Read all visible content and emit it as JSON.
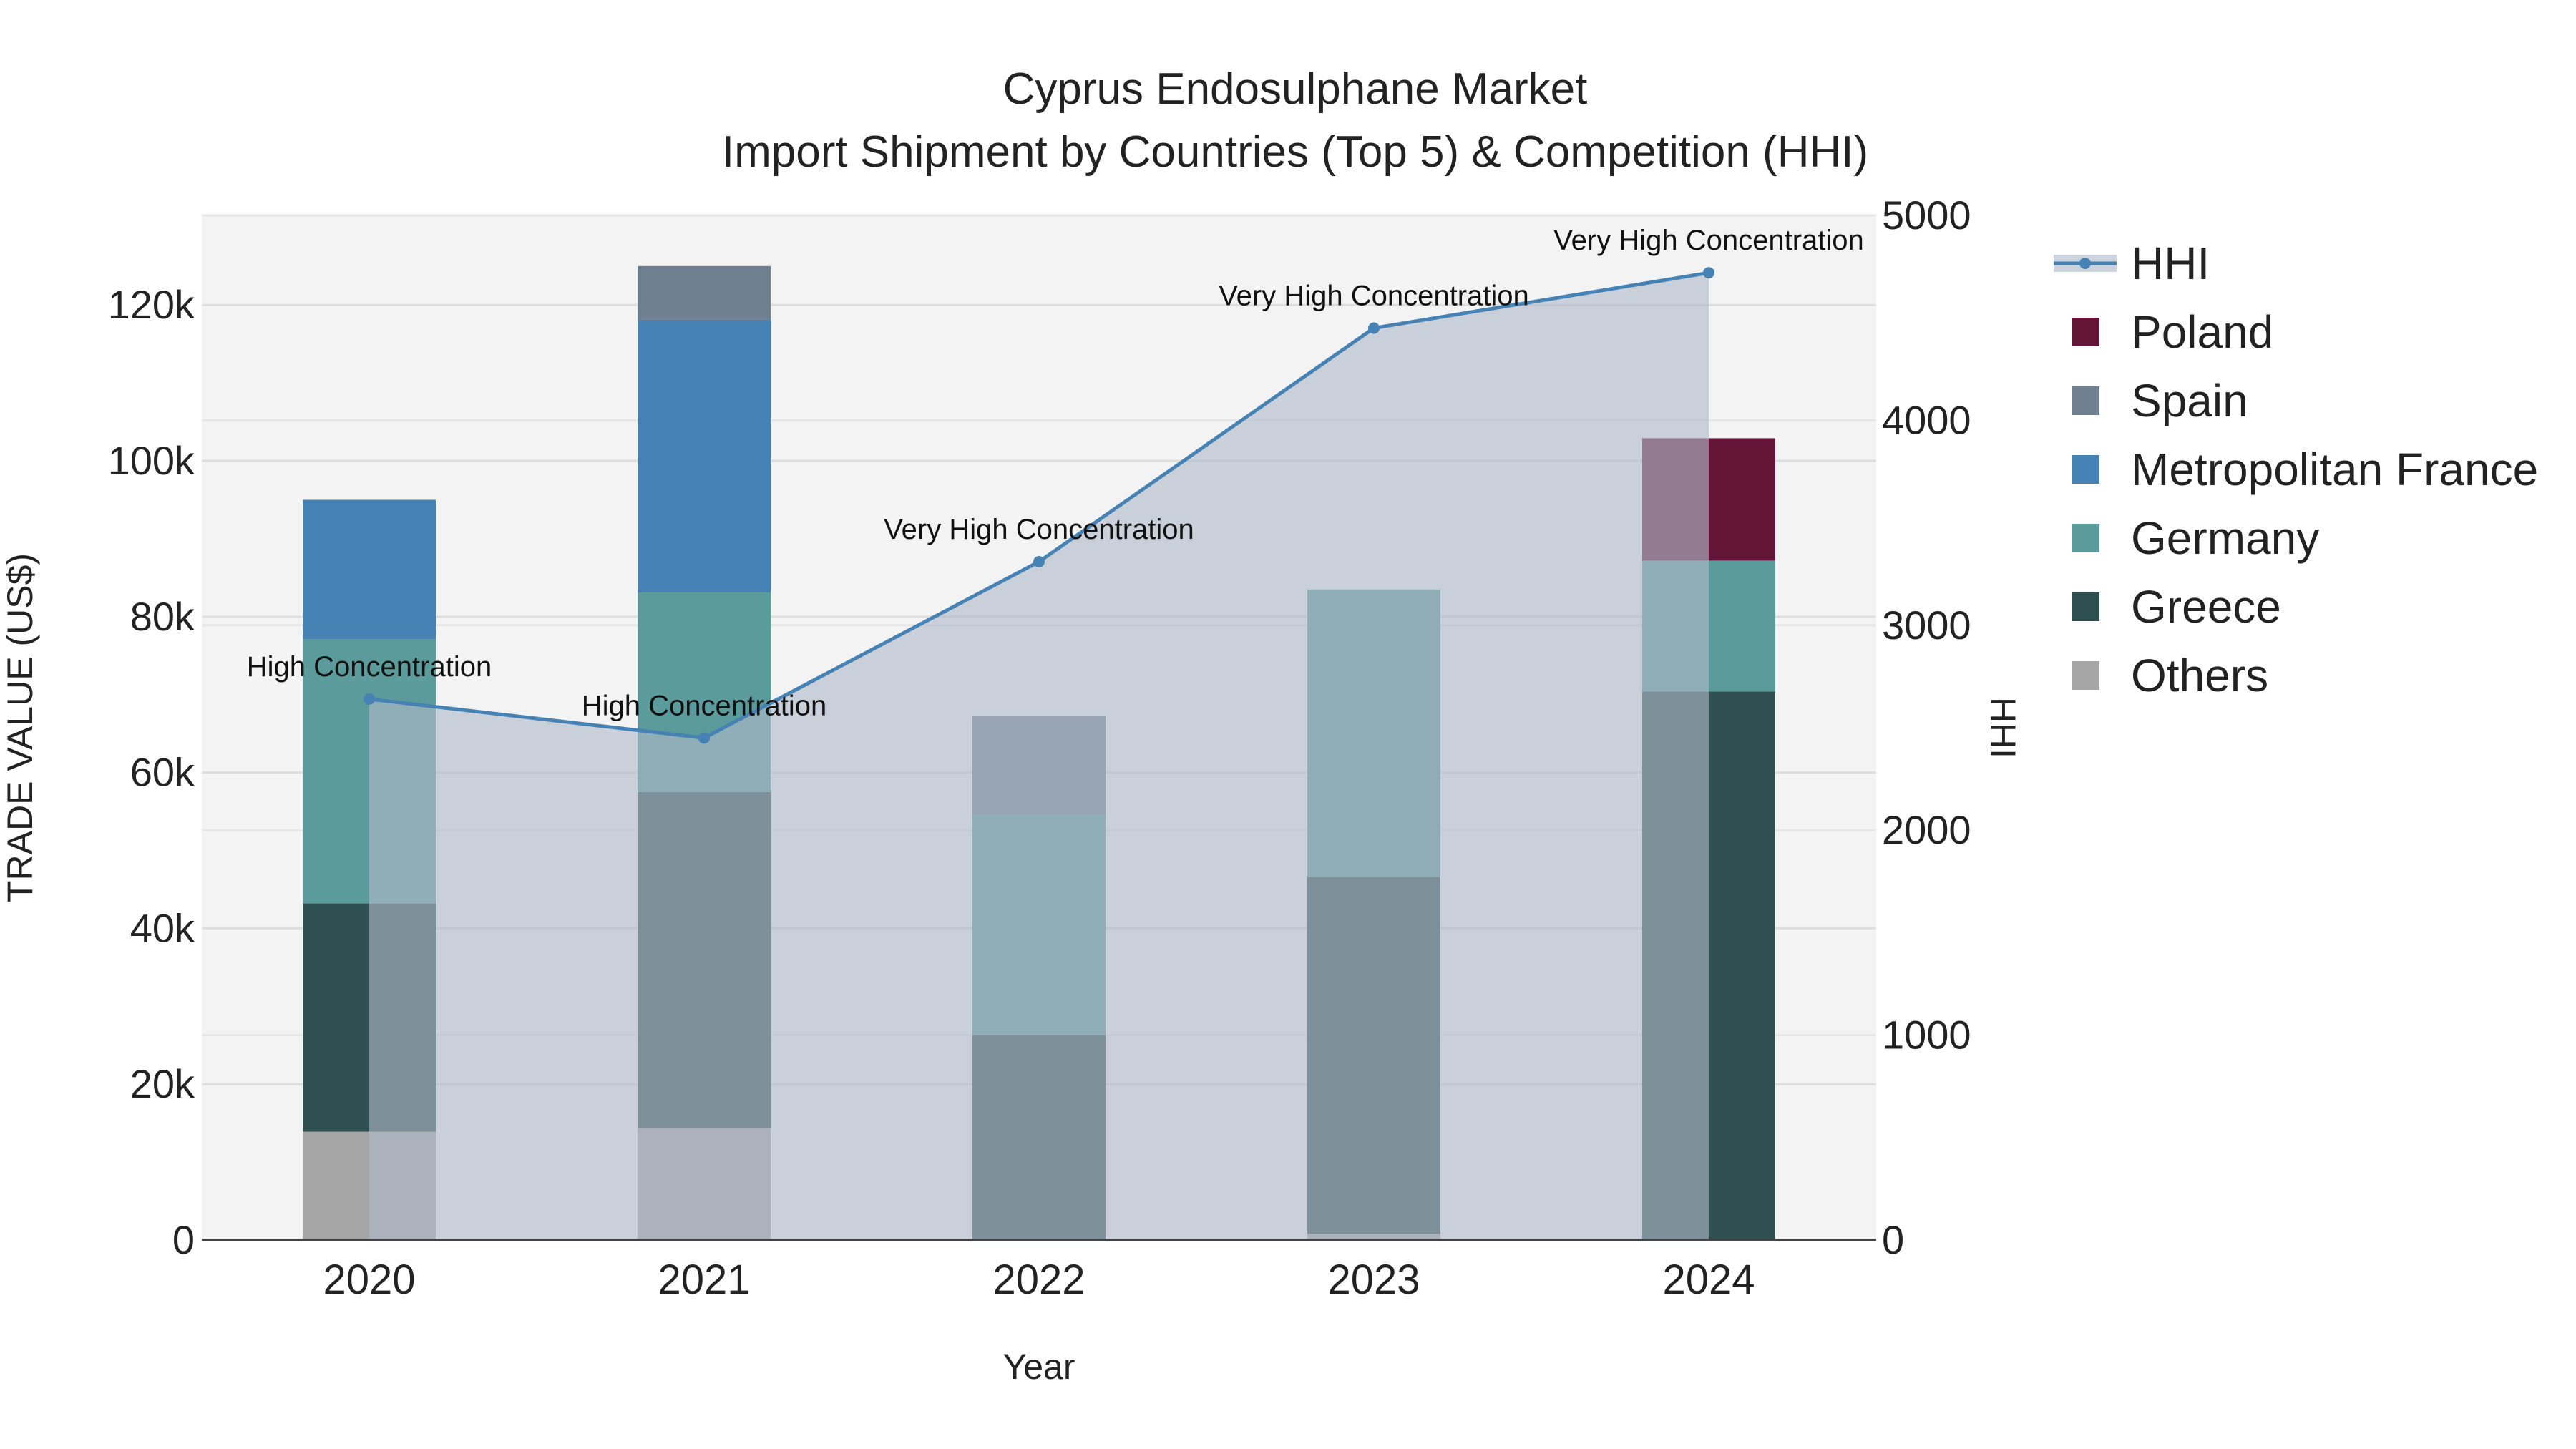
{
  "chart_data": {
    "type": "bar",
    "title": "Cyprus Endosulphane Market",
    "subtitle": "Import Shipment by Countries (Top 5) & Competition (HHI)",
    "xlabel": "Year",
    "ylabel": "TRADE VALUE (US$)",
    "y2label": "HHI",
    "categories": [
      "2020",
      "2021",
      "2022",
      "2023",
      "2024"
    ],
    "ylim": [
      0,
      131500
    ],
    "y2lim": [
      0,
      5000
    ],
    "yticks": [
      0,
      20000,
      40000,
      60000,
      80000,
      100000,
      120000
    ],
    "ytick_labels": [
      "0",
      "20k",
      "40k",
      "60k",
      "80k",
      "100k",
      "120k"
    ],
    "y2ticks": [
      0,
      1000,
      2000,
      3000,
      4000,
      5000
    ],
    "y2tick_labels": [
      "0",
      "1000",
      "2000",
      "3000",
      "4000",
      "5000"
    ],
    "series": [
      {
        "name": "Others",
        "color": "#a6a6a6",
        "values": [
          13900,
          14400,
          0,
          800,
          0
        ]
      },
      {
        "name": "Greece",
        "color": "#2f5050",
        "values": [
          29300,
          43100,
          26300,
          45800,
          70400
        ]
      },
      {
        "name": "Germany",
        "color": "#5b9b9b",
        "values": [
          33900,
          25600,
          28300,
          36900,
          16800
        ]
      },
      {
        "name": "Metropolitan France",
        "color": "#4682b4",
        "values": [
          17900,
          35000,
          0,
          0,
          0
        ]
      },
      {
        "name": "Spain",
        "color": "#708090",
        "values": [
          0,
          6900,
          12700,
          0,
          0
        ]
      },
      {
        "name": "Poland",
        "color": "#641538",
        "values": [
          0,
          0,
          0,
          0,
          15700
        ]
      }
    ],
    "hhi": {
      "name": "HHI",
      "color": "#4682b4",
      "values": [
        2640,
        2450,
        3310,
        4450,
        4720
      ],
      "labels": [
        "High Concentration",
        "High Concentration",
        "Very High Concentration",
        "Very High Concentration",
        "Very High Concentration"
      ]
    },
    "legend": [
      "HHI",
      "Poland",
      "Spain",
      "Metropolitan France",
      "Germany",
      "Greece",
      "Others"
    ],
    "legend_position": "right"
  }
}
